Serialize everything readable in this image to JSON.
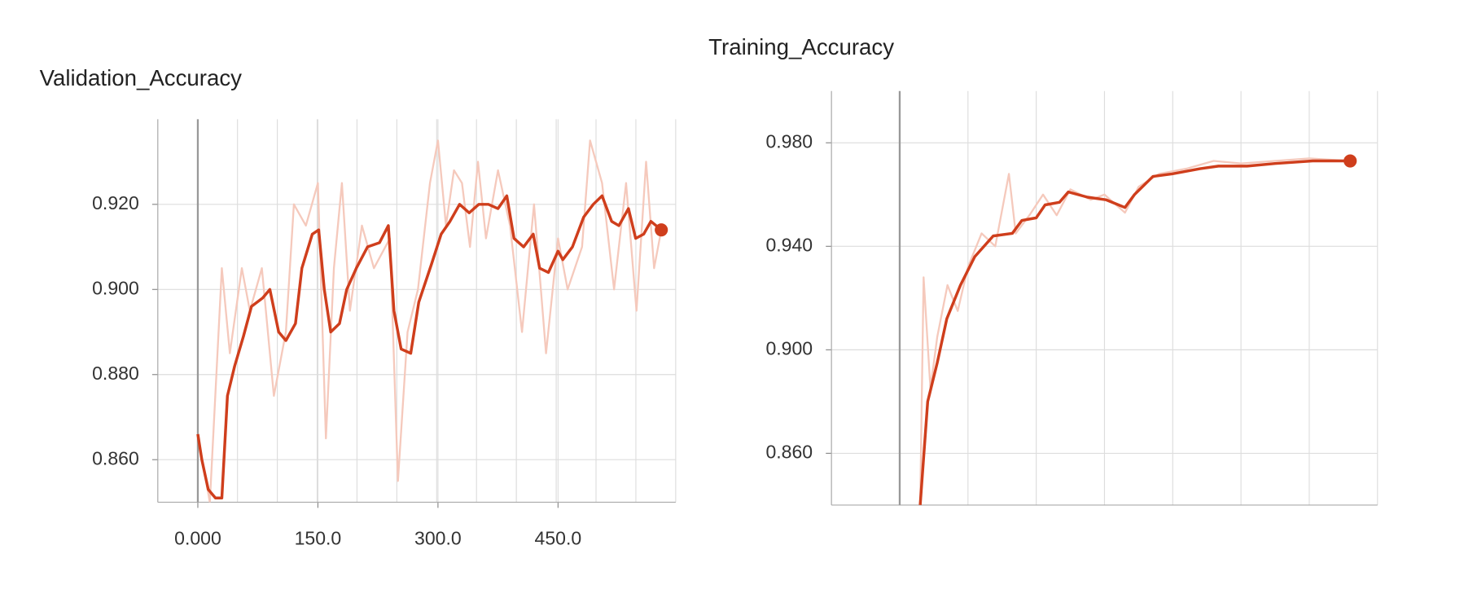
{
  "chart_data": [
    {
      "type": "line",
      "title": "Validation_Accuracy",
      "xlim": [
        -50,
        597
      ],
      "ylim": [
        0.85,
        0.94
      ],
      "xticks": [
        {
          "value": 0,
          "label": "0.000"
        },
        {
          "value": 150,
          "label": "150.0"
        },
        {
          "value": 300,
          "label": "300.0"
        },
        {
          "value": 450,
          "label": "450.0"
        }
      ],
      "yticks": [
        {
          "value": 0.86,
          "label": "0.860"
        },
        {
          "value": 0.88,
          "label": "0.880"
        },
        {
          "value": 0.9,
          "label": "0.900"
        },
        {
          "value": 0.92,
          "label": "0.920"
        }
      ],
      "grid": true,
      "series": [
        {
          "color": "#f5c9bc",
          "x": [
            0,
            15,
            30,
            40,
            55,
            65,
            80,
            95,
            110,
            120,
            135,
            150,
            160,
            170,
            180,
            190,
            205,
            220,
            240,
            250,
            262,
            275,
            290,
            300,
            310,
            320,
            330,
            340,
            350,
            360,
            375,
            390,
            405,
            420,
            435,
            450,
            462,
            480,
            490,
            505,
            520,
            535,
            548,
            560,
            570,
            579
          ],
          "values": [
            0.866,
            0.85,
            0.905,
            0.885,
            0.905,
            0.895,
            0.905,
            0.875,
            0.89,
            0.92,
            0.915,
            0.925,
            0.865,
            0.905,
            0.925,
            0.895,
            0.915,
            0.905,
            0.912,
            0.855,
            0.89,
            0.9,
            0.925,
            0.935,
            0.915,
            0.928,
            0.925,
            0.91,
            0.93,
            0.912,
            0.928,
            0.915,
            0.89,
            0.92,
            0.885,
            0.912,
            0.9,
            0.91,
            0.935,
            0.925,
            0.9,
            0.925,
            0.895,
            0.93,
            0.905,
            0.914
          ]
        },
        {
          "color": "#cf3e1c",
          "end_marker": true,
          "x": [
            0,
            5,
            13,
            22,
            30,
            37,
            46,
            57,
            67,
            81,
            90,
            101,
            110,
            122,
            130,
            143,
            151,
            158,
            166,
            177,
            186,
            198,
            212,
            227,
            238,
            245,
            254,
            266,
            276,
            292,
            304,
            315,
            327,
            339,
            351,
            363,
            375,
            386,
            395,
            407,
            419,
            427,
            438,
            450,
            456,
            468,
            482,
            494,
            505,
            517,
            526,
            538,
            547,
            557,
            566,
            579
          ],
          "values": [
            0.866,
            0.86,
            0.853,
            0.851,
            0.851,
            0.875,
            0.882,
            0.889,
            0.896,
            0.898,
            0.9,
            0.89,
            0.888,
            0.892,
            0.905,
            0.913,
            0.914,
            0.9,
            0.89,
            0.892,
            0.9,
            0.905,
            0.91,
            0.911,
            0.915,
            0.895,
            0.886,
            0.885,
            0.897,
            0.906,
            0.913,
            0.916,
            0.92,
            0.918,
            0.92,
            0.92,
            0.919,
            0.922,
            0.912,
            0.91,
            0.913,
            0.905,
            0.904,
            0.909,
            0.907,
            0.91,
            0.917,
            0.92,
            0.922,
            0.916,
            0.915,
            0.919,
            0.912,
            0.913,
            0.916,
            0.914
          ]
        }
      ]
    },
    {
      "type": "line",
      "title": "Training_Accuracy",
      "xlim": [
        -1,
        7
      ],
      "ylim": [
        0.84,
        1.0
      ],
      "yticks": [
        {
          "value": 0.86,
          "label": "0.860"
        },
        {
          "value": 0.9,
          "label": "0.900"
        },
        {
          "value": 0.94,
          "label": "0.940"
        },
        {
          "value": 0.98,
          "label": "0.980"
        }
      ],
      "grid": true,
      "series": [
        {
          "color": "#f5c9bc",
          "x": [
            0.3,
            0.35,
            0.45,
            0.55,
            0.7,
            0.85,
            1.0,
            1.2,
            1.4,
            1.6,
            1.7,
            1.9,
            2.1,
            2.3,
            2.5,
            2.8,
            3.0,
            3.3,
            3.5,
            3.8,
            4.2,
            4.6,
            5.0,
            5.5,
            6.0,
            6.6
          ],
          "values": [
            0.84,
            0.928,
            0.885,
            0.905,
            0.925,
            0.915,
            0.932,
            0.945,
            0.94,
            0.968,
            0.945,
            0.952,
            0.96,
            0.952,
            0.962,
            0.958,
            0.96,
            0.953,
            0.963,
            0.968,
            0.97,
            0.973,
            0.972,
            0.973,
            0.974,
            0.973
          ]
        },
        {
          "color": "#cf3e1c",
          "end_marker": true,
          "x": [
            0.3,
            0.41,
            0.55,
            0.69,
            0.89,
            1.1,
            1.37,
            1.65,
            1.79,
            2.0,
            2.13,
            2.34,
            2.47,
            2.75,
            3.02,
            3.3,
            3.44,
            3.71,
            3.99,
            4.4,
            4.67,
            5.09,
            5.5,
            6.05,
            6.6
          ],
          "values": [
            0.84,
            0.88,
            0.895,
            0.912,
            0.925,
            0.936,
            0.944,
            0.945,
            0.95,
            0.951,
            0.956,
            0.957,
            0.961,
            0.959,
            0.958,
            0.955,
            0.96,
            0.967,
            0.968,
            0.97,
            0.971,
            0.971,
            0.972,
            0.973,
            0.973
          ]
        }
      ]
    }
  ]
}
